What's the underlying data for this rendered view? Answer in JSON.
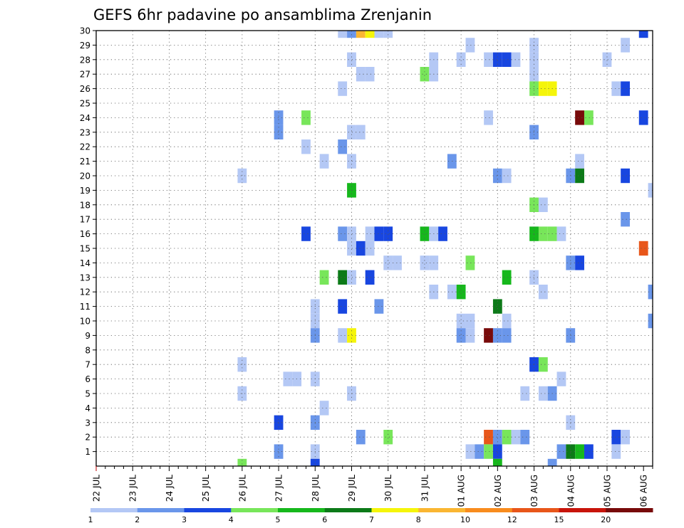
{
  "chart_data": {
    "type": "heatmap",
    "title": "GEFS 6hr padavine po ansamblima Zrenjanin",
    "xlabel": "",
    "ylabel": "",
    "x_tick_labels": [
      "22 JUL",
      "23 JUL",
      "24 JUL",
      "25 JUL",
      "26 JUL",
      "27 JUL",
      "28 JUL",
      "29 JUL",
      "30 JUL",
      "31 JUL",
      "01 AUG",
      "02 AUG",
      "03 AUG",
      "04 AUG",
      "05 AUG",
      "06 AUG"
    ],
    "x_range_steps": [
      0,
      61
    ],
    "steps_per_day": 4,
    "y_tick_labels": [
      "1",
      "2",
      "3",
      "4",
      "5",
      "6",
      "7",
      "8",
      "9",
      "10",
      "11",
      "12",
      "13",
      "14",
      "15",
      "16",
      "17",
      "18",
      "19",
      "20",
      "21",
      "22",
      "23",
      "24",
      "25",
      "26",
      "27",
      "28",
      "29",
      "30"
    ],
    "y_range": [
      0,
      30
    ],
    "grid": true,
    "colorbar": {
      "placement": "bottom",
      "levels": [
        1,
        2,
        3,
        4,
        5,
        6,
        7,
        8,
        10,
        12,
        15,
        20
      ],
      "colors": [
        "#b4c8f5",
        "#6a96ea",
        "#1846e0",
        "#78e65a",
        "#16b81c",
        "#0c7a18",
        "#f5f50a",
        "#fab632",
        "#f88c1e",
        "#e8561a",
        "#c8140a",
        "#780a0a"
      ]
    },
    "cells": [
      {
        "x": 27,
        "y": 30,
        "v": 1
      },
      {
        "x": 28,
        "y": 30,
        "v": 2
      },
      {
        "x": 29,
        "y": 30,
        "v": 8
      },
      {
        "x": 30,
        "y": 30,
        "v": 7
      },
      {
        "x": 31,
        "y": 30,
        "v": 1
      },
      {
        "x": 32,
        "y": 30,
        "v": 1
      },
      {
        "x": 60,
        "y": 30,
        "v": 3
      },
      {
        "x": 41,
        "y": 29,
        "v": 1
      },
      {
        "x": 48,
        "y": 29,
        "v": 1
      },
      {
        "x": 58,
        "y": 29,
        "v": 1
      },
      {
        "x": 28,
        "y": 28,
        "v": 1
      },
      {
        "x": 37,
        "y": 28,
        "v": 1
      },
      {
        "x": 40,
        "y": 28,
        "v": 1
      },
      {
        "x": 43,
        "y": 28,
        "v": 1
      },
      {
        "x": 44,
        "y": 28,
        "v": 3
      },
      {
        "x": 45,
        "y": 28,
        "v": 3
      },
      {
        "x": 46,
        "y": 28,
        "v": 1
      },
      {
        "x": 48,
        "y": 28,
        "v": 1
      },
      {
        "x": 56,
        "y": 28,
        "v": 1
      },
      {
        "x": 29,
        "y": 27,
        "v": 1
      },
      {
        "x": 30,
        "y": 27,
        "v": 1
      },
      {
        "x": 36,
        "y": 27,
        "v": 4
      },
      {
        "x": 37,
        "y": 27,
        "v": 1
      },
      {
        "x": 48,
        "y": 27,
        "v": 1
      },
      {
        "x": 27,
        "y": 26,
        "v": 1
      },
      {
        "x": 48,
        "y": 26,
        "v": 4
      },
      {
        "x": 49,
        "y": 26,
        "v": 7
      },
      {
        "x": 50,
        "y": 26,
        "v": 7
      },
      {
        "x": 57,
        "y": 26,
        "v": 1
      },
      {
        "x": 58,
        "y": 26,
        "v": 3
      },
      {
        "x": 20,
        "y": 24,
        "v": 2
      },
      {
        "x": 23,
        "y": 24,
        "v": 4
      },
      {
        "x": 43,
        "y": 24,
        "v": 1
      },
      {
        "x": 53,
        "y": 24,
        "v": 20
      },
      {
        "x": 54,
        "y": 24,
        "v": 4
      },
      {
        "x": 60,
        "y": 24,
        "v": 3
      },
      {
        "x": 20,
        "y": 23,
        "v": 2
      },
      {
        "x": 28,
        "y": 23,
        "v": 1
      },
      {
        "x": 29,
        "y": 23,
        "v": 1
      },
      {
        "x": 48,
        "y": 23,
        "v": 2
      },
      {
        "x": 23,
        "y": 22,
        "v": 1
      },
      {
        "x": 27,
        "y": 22,
        "v": 2
      },
      {
        "x": 25,
        "y": 21,
        "v": 1
      },
      {
        "x": 28,
        "y": 21,
        "v": 1
      },
      {
        "x": 39,
        "y": 21,
        "v": 2
      },
      {
        "x": 53,
        "y": 21,
        "v": 1
      },
      {
        "x": 16,
        "y": 20,
        "v": 1
      },
      {
        "x": 44,
        "y": 20,
        "v": 2
      },
      {
        "x": 45,
        "y": 20,
        "v": 1
      },
      {
        "x": 52,
        "y": 20,
        "v": 2
      },
      {
        "x": 53,
        "y": 20,
        "v": 6
      },
      {
        "x": 58,
        "y": 20,
        "v": 3
      },
      {
        "x": 28,
        "y": 19,
        "v": 5
      },
      {
        "x": 61,
        "y": 19,
        "v": 1
      },
      {
        "x": 48,
        "y": 18,
        "v": 4
      },
      {
        "x": 49,
        "y": 18,
        "v": 1
      },
      {
        "x": 58,
        "y": 17,
        "v": 2
      },
      {
        "x": 23,
        "y": 16,
        "v": 3
      },
      {
        "x": 27,
        "y": 16,
        "v": 2
      },
      {
        "x": 28,
        "y": 16,
        "v": 1
      },
      {
        "x": 30,
        "y": 16,
        "v": 1
      },
      {
        "x": 31,
        "y": 16,
        "v": 3
      },
      {
        "x": 32,
        "y": 16,
        "v": 3
      },
      {
        "x": 36,
        "y": 16,
        "v": 5
      },
      {
        "x": 37,
        "y": 16,
        "v": 1
      },
      {
        "x": 38,
        "y": 16,
        "v": 3
      },
      {
        "x": 48,
        "y": 16,
        "v": 5
      },
      {
        "x": 49,
        "y": 16,
        "v": 4
      },
      {
        "x": 50,
        "y": 16,
        "v": 4
      },
      {
        "x": 51,
        "y": 16,
        "v": 1
      },
      {
        "x": 28,
        "y": 15,
        "v": 1
      },
      {
        "x": 29,
        "y": 15,
        "v": 3
      },
      {
        "x": 30,
        "y": 15,
        "v": 1
      },
      {
        "x": 60,
        "y": 15,
        "v": 12
      },
      {
        "x": 32,
        "y": 14,
        "v": 1
      },
      {
        "x": 33,
        "y": 14,
        "v": 1
      },
      {
        "x": 36,
        "y": 14,
        "v": 1
      },
      {
        "x": 37,
        "y": 14,
        "v": 1
      },
      {
        "x": 41,
        "y": 14,
        "v": 4
      },
      {
        "x": 52,
        "y": 14,
        "v": 2
      },
      {
        "x": 53,
        "y": 14,
        "v": 3
      },
      {
        "x": 25,
        "y": 13,
        "v": 4
      },
      {
        "x": 27,
        "y": 13,
        "v": 6
      },
      {
        "x": 28,
        "y": 13,
        "v": 1
      },
      {
        "x": 30,
        "y": 13,
        "v": 3
      },
      {
        "x": 45,
        "y": 13,
        "v": 5
      },
      {
        "x": 48,
        "y": 13,
        "v": 1
      },
      {
        "x": 37,
        "y": 12,
        "v": 1
      },
      {
        "x": 39,
        "y": 12,
        "v": 1
      },
      {
        "x": 40,
        "y": 12,
        "v": 5
      },
      {
        "x": 49,
        "y": 12,
        "v": 1
      },
      {
        "x": 61,
        "y": 12,
        "v": 2
      },
      {
        "x": 24,
        "y": 11,
        "v": 1
      },
      {
        "x": 27,
        "y": 11,
        "v": 3
      },
      {
        "x": 31,
        "y": 11,
        "v": 2
      },
      {
        "x": 44,
        "y": 11,
        "v": 6
      },
      {
        "x": 24,
        "y": 10,
        "v": 1
      },
      {
        "x": 40,
        "y": 10,
        "v": 1
      },
      {
        "x": 41,
        "y": 10,
        "v": 1
      },
      {
        "x": 45,
        "y": 10,
        "v": 1
      },
      {
        "x": 61,
        "y": 10,
        "v": 2
      },
      {
        "x": 24,
        "y": 9,
        "v": 2
      },
      {
        "x": 27,
        "y": 9,
        "v": 1
      },
      {
        "x": 28,
        "y": 9,
        "v": 7
      },
      {
        "x": 40,
        "y": 9,
        "v": 2
      },
      {
        "x": 41,
        "y": 9,
        "v": 1
      },
      {
        "x": 43,
        "y": 9,
        "v": 20
      },
      {
        "x": 44,
        "y": 9,
        "v": 2
      },
      {
        "x": 45,
        "y": 9,
        "v": 2
      },
      {
        "x": 52,
        "y": 9,
        "v": 2
      },
      {
        "x": 16,
        "y": 7,
        "v": 1
      },
      {
        "x": 48,
        "y": 7,
        "v": 3
      },
      {
        "x": 49,
        "y": 7,
        "v": 4
      },
      {
        "x": 21,
        "y": 6,
        "v": 1
      },
      {
        "x": 22,
        "y": 6,
        "v": 1
      },
      {
        "x": 24,
        "y": 6,
        "v": 1
      },
      {
        "x": 51,
        "y": 6,
        "v": 1
      },
      {
        "x": 16,
        "y": 5,
        "v": 1
      },
      {
        "x": 28,
        "y": 5,
        "v": 1
      },
      {
        "x": 47,
        "y": 5,
        "v": 1
      },
      {
        "x": 49,
        "y": 5,
        "v": 1
      },
      {
        "x": 50,
        "y": 5,
        "v": 2
      },
      {
        "x": 25,
        "y": 4,
        "v": 1
      },
      {
        "x": 20,
        "y": 3,
        "v": 3
      },
      {
        "x": 24,
        "y": 3,
        "v": 2
      },
      {
        "x": 52,
        "y": 3,
        "v": 1
      },
      {
        "x": 29,
        "y": 2,
        "v": 2
      },
      {
        "x": 32,
        "y": 2,
        "v": 4
      },
      {
        "x": 43,
        "y": 2,
        "v": 12
      },
      {
        "x": 44,
        "y": 2,
        "v": 2
      },
      {
        "x": 45,
        "y": 2,
        "v": 4
      },
      {
        "x": 46,
        "y": 2,
        "v": 1
      },
      {
        "x": 47,
        "y": 2,
        "v": 2
      },
      {
        "x": 57,
        "y": 2,
        "v": 3
      },
      {
        "x": 58,
        "y": 2,
        "v": 1
      },
      {
        "x": 20,
        "y": 1,
        "v": 2
      },
      {
        "x": 24,
        "y": 1,
        "v": 1
      },
      {
        "x": 41,
        "y": 1,
        "v": 1
      },
      {
        "x": 42,
        "y": 1,
        "v": 2
      },
      {
        "x": 43,
        "y": 1,
        "v": 4
      },
      {
        "x": 44,
        "y": 1,
        "v": 3
      },
      {
        "x": 51,
        "y": 1,
        "v": 2
      },
      {
        "x": 52,
        "y": 1,
        "v": 6
      },
      {
        "x": 53,
        "y": 1,
        "v": 5
      },
      {
        "x": 54,
        "y": 1,
        "v": 3
      },
      {
        "x": 57,
        "y": 1,
        "v": 1
      },
      {
        "x": 16,
        "y": 0,
        "v": 4
      },
      {
        "x": 24,
        "y": 0,
        "v": 3
      },
      {
        "x": 44,
        "y": 0,
        "v": 5
      },
      {
        "x": 50,
        "y": 0,
        "v": 2
      }
    ]
  }
}
